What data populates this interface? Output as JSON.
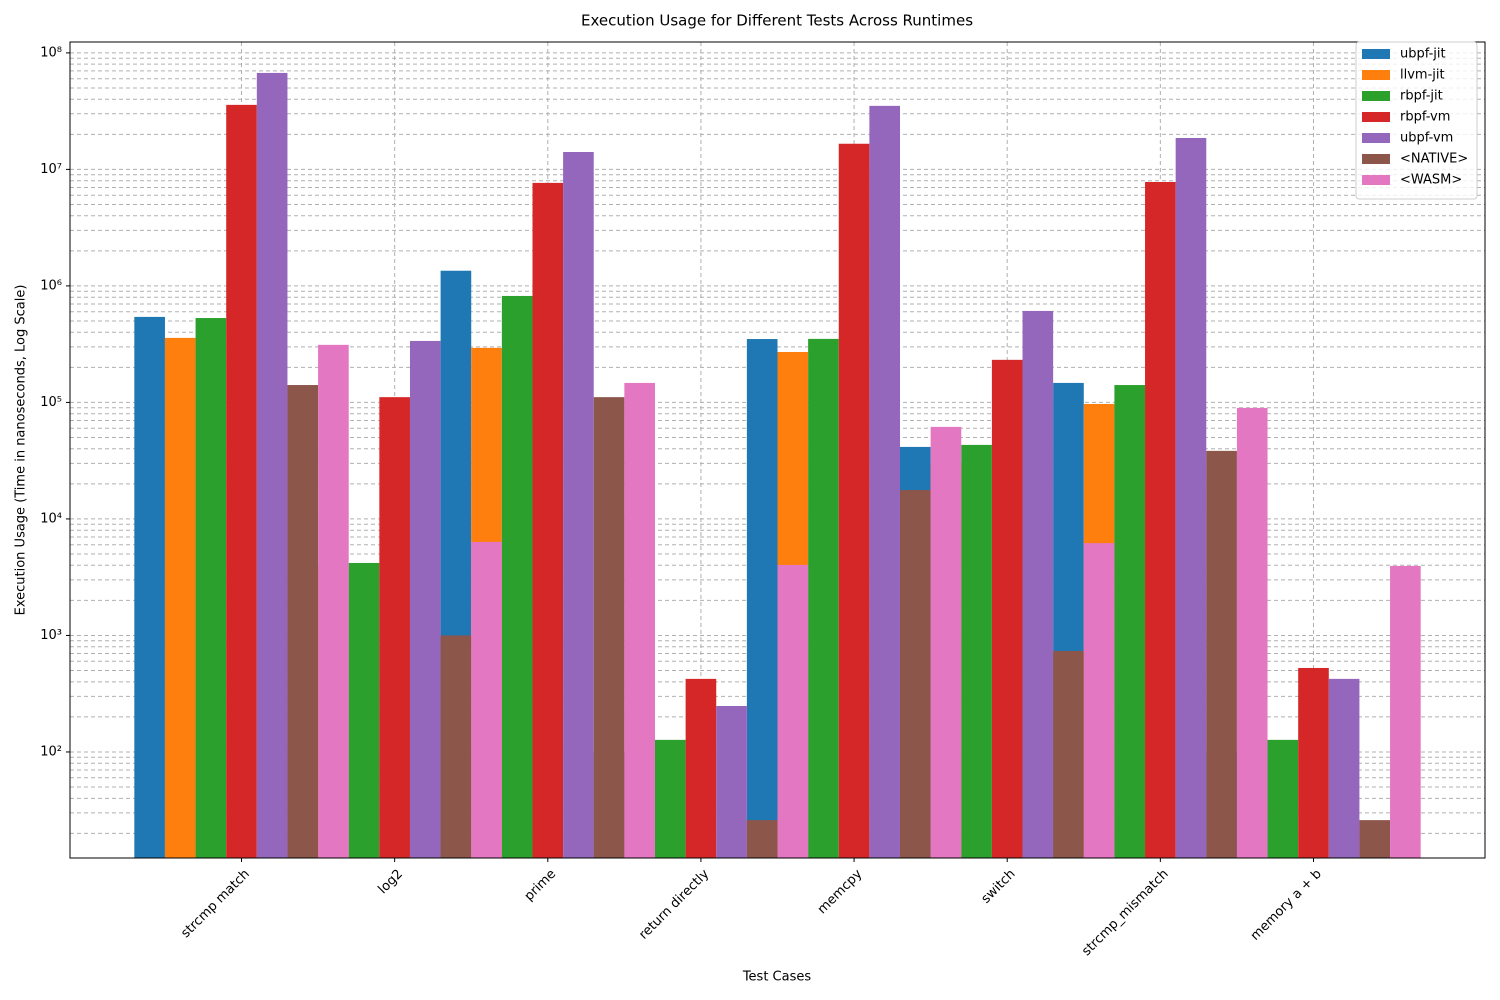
{
  "chart_data": {
    "type": "bar",
    "title": "Execution Usage for Different Tests Across Runtimes",
    "x_label": "Test Cases",
    "y_label": "Execution Usage (Time in nanoseconds, Log Scale)",
    "categories": [
      "strcmp match",
      "log2",
      "prime",
      "return directly",
      "memcpy",
      "switch",
      "strcmp_mismatch",
      "memory a + b"
    ],
    "series": [
      {
        "name": "ubpf-jit",
        "color": "#1f77b4",
        "values": [
          542000,
          4000,
          1350000,
          100,
          350000,
          41500,
          147000,
          100
        ]
      },
      {
        "name": "llvm-jit",
        "color": "#ff7f0e",
        "values": [
          358000,
          4000,
          294000,
          100,
          271000,
          30000,
          97000,
          100
        ]
      },
      {
        "name": "rbpf-jit",
        "color": "#2ca02c",
        "values": [
          530000,
          4190,
          820000,
          127,
          351000,
          43200,
          141000,
          127
        ]
      },
      {
        "name": "rbpf-vm",
        "color": "#d62728",
        "values": [
          35800000,
          111000,
          7660000,
          424,
          16600000,
          232000,
          7800000,
          526
        ]
      },
      {
        "name": "ubpf-vm",
        "color": "#9467bd",
        "values": [
          67300000,
          337000,
          14100000,
          248,
          35100000,
          610000,
          18600000,
          424
        ]
      },
      {
        "name": "<NATIVE>",
        "color": "#8c564b",
        "values": [
          141000,
          1000,
          111000,
          26,
          17700,
          736,
          38400,
          26
        ]
      },
      {
        "name": "<WASM>",
        "color": "#e377c2",
        "values": [
          312000,
          6350,
          147000,
          4030,
          61700,
          6200,
          89700,
          3950
        ]
      }
    ],
    "log_y": true,
    "ylim": [
      12.3,
      124000000
    ],
    "yticks": [
      {
        "value": 100,
        "label": "10²"
      },
      {
        "value": 1000,
        "label": "10³"
      },
      {
        "value": 10000,
        "label": "10⁴"
      },
      {
        "value": 100000,
        "label": "10⁵"
      },
      {
        "value": 1000000,
        "label": "10⁶"
      },
      {
        "value": 10000000,
        "label": "10⁷"
      },
      {
        "value": 100000000,
        "label": "10⁸"
      }
    ],
    "y_minor_ticks": [
      20,
      30,
      40,
      50,
      60,
      70,
      80,
      90,
      200,
      300,
      400,
      500,
      600,
      700,
      800,
      900,
      2000,
      3000,
      4000,
      5000,
      6000,
      7000,
      8000,
      9000,
      20000,
      30000,
      40000,
      50000,
      60000,
      70000,
      80000,
      90000,
      200000,
      300000,
      400000,
      500000,
      600000,
      700000,
      800000,
      900000,
      2000000,
      3000000,
      4000000,
      5000000,
      6000000,
      7000000,
      8000000,
      9000000,
      20000000,
      30000000,
      40000000,
      50000000,
      60000000,
      70000000,
      80000000,
      90000000
    ],
    "grid": true,
    "legend": "upper right"
  }
}
